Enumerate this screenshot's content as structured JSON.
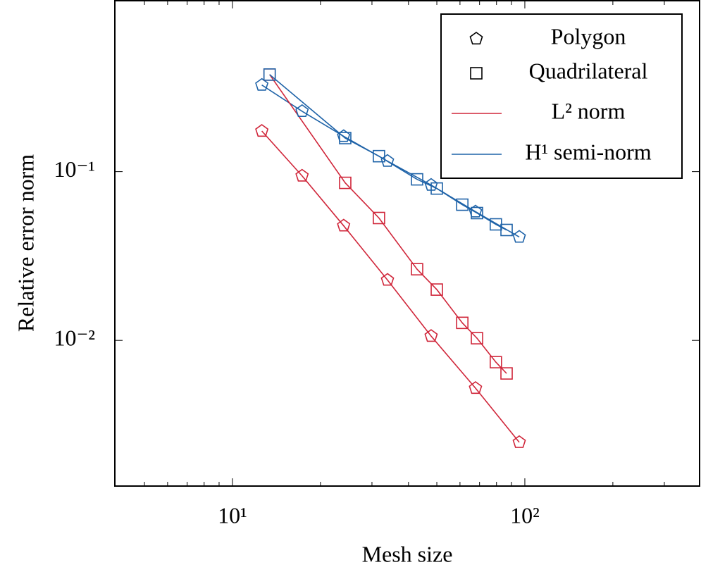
{
  "chart_data": {
    "type": "line",
    "x_label": "Mesh size",
    "y_label": "Relative error norm",
    "x_log": true,
    "y_log": true,
    "xlim": [
      3.96,
      396
    ],
    "ylim": [
      0.00137,
      1.03
    ],
    "xticks": [
      {
        "value": 10,
        "label": "10¹"
      },
      {
        "value": 100,
        "label": "10²"
      }
    ],
    "x_minor_ticks": [
      5,
      6,
      7,
      8,
      9,
      20,
      30,
      40,
      50,
      60,
      70,
      80,
      90,
      200,
      300
    ],
    "yticks": [
      {
        "value": 0.01,
        "label": "10⁻²"
      },
      {
        "value": 0.1,
        "label": "10⁻¹"
      }
    ],
    "legend_position": "upper right",
    "legend": [
      {
        "label": "Polygon",
        "marker": "pentagon"
      },
      {
        "label": "Quadrilateral",
        "marker": "square"
      },
      {
        "label": "L² norm",
        "color": "#d0263a"
      },
      {
        "label": "H¹ semi-norm",
        "color": "#1f63a8"
      }
    ],
    "series": [
      {
        "marker": "pentagon",
        "color": "#d0263a",
        "x": [
          12.6,
          17.3,
          24.0,
          33.9,
          47.8,
          67.8,
          95.7
        ],
        "values": [
          0.174,
          0.0944,
          0.0478,
          0.0228,
          0.0106,
          0.00521,
          0.00249
        ]
      },
      {
        "marker": "pentagon",
        "color": "#1f63a8",
        "x": [
          12.6,
          17.3,
          24.0,
          33.9,
          47.8,
          67.8,
          95.7
        ],
        "values": [
          0.326,
          0.228,
          0.162,
          0.1155,
          0.0833,
          0.0579,
          0.041
        ]
      },
      {
        "marker": "square",
        "color": "#d0263a",
        "x": [
          13.4,
          24.3,
          31.7,
          42.8,
          50.0,
          61.1,
          68.6,
          79.6,
          86.6
        ],
        "values": [
          0.376,
          0.0858,
          0.0531,
          0.0264,
          0.02,
          0.0127,
          0.0103,
          0.00743,
          0.00637
        ]
      },
      {
        "marker": "square",
        "color": "#1f63a8",
        "x": [
          13.4,
          24.3,
          31.7,
          42.8,
          50.0,
          61.1,
          68.6,
          79.6,
          86.6
        ],
        "values": [
          0.376,
          0.158,
          0.1235,
          0.09,
          0.0794,
          0.0637,
          0.0568,
          0.0487,
          0.0451
        ]
      }
    ]
  }
}
